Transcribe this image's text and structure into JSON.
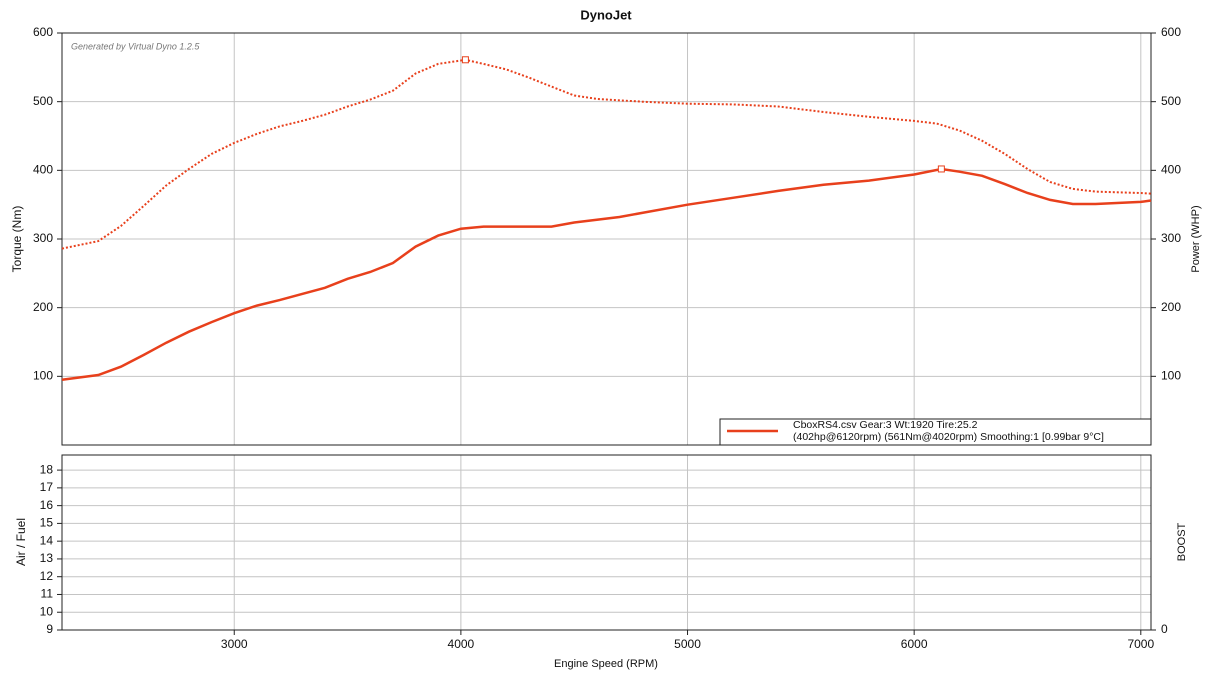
{
  "chart_data": [
    {
      "type": "line",
      "title": "DynoJet",
      "annotation": "Generated by Virtual Dyno 1.2.5",
      "y_label": "Torque (Nm)",
      "y2_label": "Power (WHP)",
      "xlim": [
        2240,
        7045
      ],
      "ylim": [
        0,
        600
      ],
      "yticks": [
        100,
        200,
        300,
        400,
        500,
        600
      ],
      "y2lim": [
        0,
        600
      ],
      "y2ticks": [
        100,
        200,
        300,
        400,
        500,
        600
      ],
      "grid": true,
      "legend": {
        "position": "lower right",
        "color": "#e8401c",
        "lines": [
          "CboxRS4.csv Gear:3 Wt:1920 Tire:25.2",
          "(402hp@6120rpm) (561Nm@4020rpm) Smoothing:1 [0.99bar 9°C]"
        ]
      },
      "series": [
        {
          "color": "#e8401c",
          "style": "dotted",
          "axis": "y",
          "x": [
            2240,
            2400,
            2500,
            2600,
            2700,
            2800,
            2900,
            3000,
            3100,
            3200,
            3300,
            3400,
            3500,
            3600,
            3700,
            3800,
            3900,
            4000,
            4020,
            4100,
            4200,
            4300,
            4400,
            4500,
            4600,
            4800,
            5000,
            5200,
            5400,
            5600,
            5800,
            6000,
            6100,
            6200,
            6300,
            6400,
            6500,
            6600,
            6700,
            6800,
            7000,
            7045
          ],
          "values": [
            286,
            297,
            319,
            348,
            378,
            402,
            424,
            440,
            453,
            464,
            472,
            481,
            493,
            503,
            516,
            541,
            555,
            560,
            561,
            555,
            547,
            535,
            522,
            509,
            504,
            500,
            497,
            496,
            493,
            485,
            478,
            472,
            468,
            458,
            443,
            424,
            402,
            383,
            373,
            369,
            367,
            366
          ]
        },
        {
          "color": "#e8401c",
          "style": "solid",
          "axis": "y2",
          "x": [
            2240,
            2400,
            2500,
            2600,
            2700,
            2800,
            2900,
            3000,
            3100,
            3200,
            3300,
            3400,
            3500,
            3600,
            3700,
            3800,
            3900,
            4000,
            4100,
            4200,
            4400,
            4500,
            4700,
            4800,
            5000,
            5200,
            5400,
            5600,
            5800,
            6000,
            6120,
            6200,
            6300,
            6400,
            6500,
            6600,
            6700,
            6800,
            7000,
            7045
          ],
          "values": [
            95,
            102,
            114,
            131,
            149,
            165,
            179,
            192,
            203,
            211,
            220,
            229,
            242,
            252,
            265,
            289,
            305,
            315,
            318,
            318,
            318,
            324,
            332,
            338,
            350,
            360,
            370,
            379,
            385,
            394,
            402,
            398,
            392,
            380,
            367,
            357,
            351,
            351,
            354,
            356
          ]
        }
      ]
    },
    {
      "type": "line",
      "x_label": "Engine Speed (RPM)",
      "y_label": "Air / Fuel",
      "y2_label": "BOOST",
      "xlim": [
        2240,
        7045
      ],
      "xticks": [
        3000,
        4000,
        5000,
        6000,
        7000
      ],
      "ylim": [
        9,
        18.85
      ],
      "yticks": [
        9,
        10,
        11,
        12,
        13,
        14,
        15,
        16,
        17,
        18
      ],
      "y2lim": [
        0,
        1
      ],
      "y2ticks": [
        0
      ],
      "grid": true,
      "series": []
    }
  ]
}
